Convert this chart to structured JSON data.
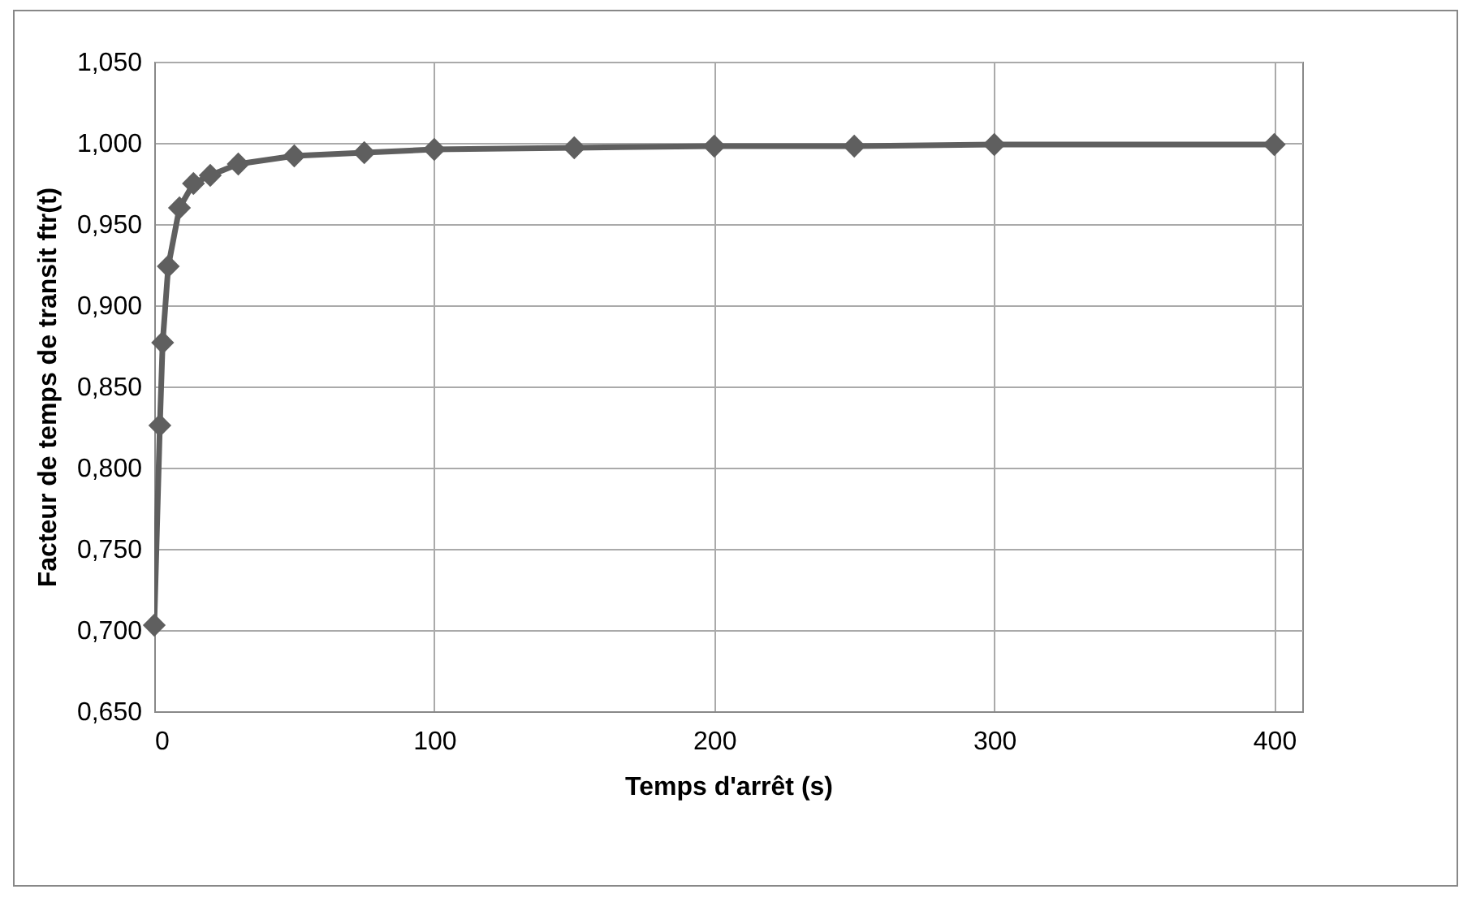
{
  "chart_data": {
    "type": "line",
    "xlabel": "Temps d'arrêt (s)",
    "ylabel": "Facteur de temps de transit  ftr(t)",
    "x": [
      0,
      2,
      3,
      5,
      9,
      14,
      20,
      30,
      50,
      75,
      100,
      150,
      200,
      250,
      300,
      400
    ],
    "series": [
      {
        "color": "#5f5f5f",
        "values": [
          0.703,
          0.826,
          0.877,
          0.924,
          0.96,
          0.975,
          0.98,
          0.987,
          0.992,
          0.994,
          0.996,
          0.997,
          0.998,
          0.998,
          0.999,
          0.999
        ]
      }
    ],
    "xlim": [
      0,
      410
    ],
    "xticks": [
      0,
      100,
      200,
      300,
      400
    ],
    "ylim": [
      0.65,
      1.05
    ],
    "yticks": [
      {
        "value": 0.65,
        "label": "0,650"
      },
      {
        "value": 0.7,
        "label": "0,700"
      },
      {
        "value": 0.75,
        "label": "0,750"
      },
      {
        "value": 0.8,
        "label": "0,800"
      },
      {
        "value": 0.85,
        "label": "0,850"
      },
      {
        "value": 0.9,
        "label": "0,900"
      },
      {
        "value": 0.95,
        "label": "0,950"
      },
      {
        "value": 1,
        "label": "1,000"
      },
      {
        "value": 1.05,
        "label": "1,050"
      }
    ],
    "grid": true,
    "marker": "diamond",
    "line_style": "solid"
  }
}
